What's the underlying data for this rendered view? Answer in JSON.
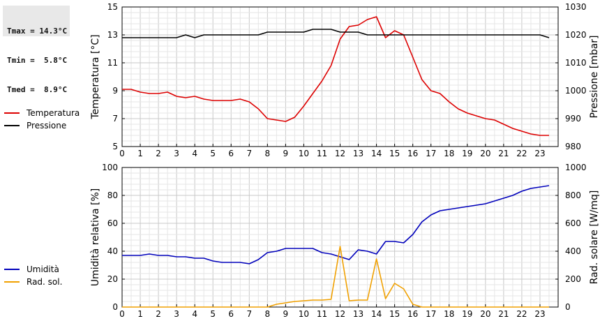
{
  "stats": {
    "tmax": "Tmax = 14.3°C",
    "tmin": "Tmin =  5.8°C",
    "tmed": "Tmed =  8.9°C"
  },
  "chart_data": [
    {
      "type": "line",
      "ylabel_left": "Temperatura [°C]",
      "ylabel_right": "Pressione [mbar]",
      "xlim": [
        0,
        24
      ],
      "x_ticks": [
        0,
        1,
        2,
        3,
        4,
        5,
        6,
        7,
        8,
        9,
        10,
        11,
        12,
        13,
        14,
        15,
        16,
        17,
        18,
        19,
        20,
        21,
        22,
        23
      ],
      "ylim_left": [
        5,
        15
      ],
      "yticks_left": [
        5,
        7,
        9,
        11,
        13,
        15
      ],
      "ylim_right": [
        980,
        1030
      ],
      "yticks_right": [
        980,
        990,
        1000,
        1010,
        1020,
        1030
      ],
      "grid": true,
      "legend_position": "left",
      "series": [
        {
          "name": "Temperatura",
          "axis": "left",
          "color": "#dd0000",
          "x": [
            0,
            0.5,
            1,
            1.5,
            2,
            2.5,
            3,
            3.5,
            4,
            4.5,
            5,
            5.5,
            6,
            6.5,
            7,
            7.5,
            8,
            8.5,
            9,
            9.5,
            10,
            10.5,
            11,
            11.5,
            12,
            12.5,
            13,
            13.5,
            14,
            14.5,
            15,
            15.5,
            16,
            16.5,
            17,
            17.5,
            18,
            18.5,
            19,
            19.5,
            20,
            20.5,
            21,
            21.5,
            22,
            22.5,
            23,
            23.5
          ],
          "values": [
            9.1,
            9.1,
            8.9,
            8.8,
            8.8,
            8.9,
            8.6,
            8.5,
            8.6,
            8.4,
            8.3,
            8.3,
            8.3,
            8.4,
            8.2,
            7.7,
            7.0,
            6.9,
            6.8,
            7.1,
            7.9,
            8.8,
            9.7,
            10.8,
            12.7,
            13.6,
            13.7,
            14.1,
            14.3,
            12.8,
            13.3,
            13.0,
            11.4,
            9.8,
            9.0,
            8.8,
            8.2,
            7.7,
            7.4,
            7.2,
            7.0,
            6.9,
            6.6,
            6.3,
            6.1,
            5.9,
            5.8,
            5.8
          ]
        },
        {
          "name": "Pressione",
          "axis": "right",
          "color": "#000000",
          "x": [
            0,
            0.5,
            1,
            1.5,
            2,
            2.5,
            3,
            3.5,
            4,
            4.5,
            5,
            5.5,
            6,
            6.5,
            7,
            7.5,
            8,
            8.5,
            9,
            9.5,
            10,
            10.5,
            11,
            11.5,
            12,
            12.5,
            13,
            13.5,
            14,
            14.5,
            15,
            15.5,
            16,
            16.5,
            17,
            17.5,
            18,
            18.5,
            19,
            19.5,
            20,
            20.5,
            21,
            21.5,
            22,
            22.5,
            23,
            23.5
          ],
          "values": [
            1019,
            1019,
            1019,
            1019,
            1019,
            1019,
            1019,
            1020,
            1019,
            1020,
            1020,
            1020,
            1020,
            1020,
            1020,
            1020,
            1021,
            1021,
            1021,
            1021,
            1021,
            1022,
            1022,
            1022,
            1021,
            1021,
            1021,
            1020,
            1020,
            1020,
            1020,
            1020,
            1020,
            1020,
            1020,
            1020,
            1020,
            1020,
            1020,
            1020,
            1020,
            1020,
            1020,
            1020,
            1020,
            1020,
            1020,
            1019
          ]
        }
      ]
    },
    {
      "type": "line",
      "ylabel_left": "Umidità relativa [%]",
      "ylabel_right": "Rad. solare [W/mq]",
      "xlim": [
        0,
        24
      ],
      "x_ticks": [
        0,
        1,
        2,
        3,
        4,
        5,
        6,
        7,
        8,
        9,
        10,
        11,
        12,
        13,
        14,
        15,
        16,
        17,
        18,
        19,
        20,
        21,
        22,
        23
      ],
      "ylim_left": [
        0,
        100
      ],
      "yticks_left": [
        0,
        20,
        40,
        60,
        80,
        100
      ],
      "ylim_right": [
        0,
        1000
      ],
      "yticks_right": [
        0,
        200,
        400,
        600,
        800,
        1000
      ],
      "grid": true,
      "legend_position": "left",
      "series": [
        {
          "name": "Umidità",
          "axis": "left",
          "color": "#0000bb",
          "x": [
            0,
            0.5,
            1,
            1.5,
            2,
            2.5,
            3,
            3.5,
            4,
            4.5,
            5,
            5.5,
            6,
            6.5,
            7,
            7.5,
            8,
            8.5,
            9,
            9.5,
            10,
            10.5,
            11,
            11.5,
            12,
            12.5,
            13,
            13.5,
            14,
            14.5,
            15,
            15.5,
            16,
            16.5,
            17,
            17.5,
            18,
            18.5,
            19,
            19.5,
            20,
            20.5,
            21,
            21.5,
            22,
            22.5,
            23,
            23.5
          ],
          "values": [
            37,
            37,
            37,
            38,
            37,
            37,
            36,
            36,
            35,
            35,
            33,
            32,
            32,
            32,
            31,
            34,
            39,
            40,
            42,
            42,
            42,
            42,
            39,
            38,
            36,
            34,
            41,
            40,
            38,
            47,
            47,
            46,
            52,
            61,
            66,
            69,
            70,
            71,
            72,
            73,
            74,
            76,
            78,
            80,
            83,
            85,
            86,
            87
          ]
        },
        {
          "name": "Rad. sol.",
          "axis": "right",
          "color": "#f0a000",
          "x": [
            0,
            0.5,
            1,
            1.5,
            2,
            2.5,
            3,
            3.5,
            4,
            4.5,
            5,
            5.5,
            6,
            6.5,
            7,
            7.5,
            8,
            8.5,
            9,
            9.5,
            10,
            10.5,
            11,
            11.5,
            12,
            12.5,
            13,
            13.5,
            14,
            14.5,
            15,
            15.5,
            16,
            16.5,
            17,
            17.5,
            18,
            18.5,
            19,
            19.5,
            20,
            20.5,
            21,
            21.5,
            22,
            22.5,
            23,
            23.5
          ],
          "values": [
            0,
            0,
            0,
            0,
            0,
            0,
            0,
            0,
            0,
            0,
            0,
            0,
            0,
            0,
            0,
            0,
            0,
            20,
            30,
            40,
            45,
            50,
            50,
            55,
            435,
            45,
            50,
            50,
            345,
            60,
            170,
            130,
            20,
            0,
            0,
            0,
            0,
            0,
            0,
            0,
            0,
            0,
            0,
            0,
            0,
            0,
            0,
            0
          ]
        }
      ]
    }
  ]
}
